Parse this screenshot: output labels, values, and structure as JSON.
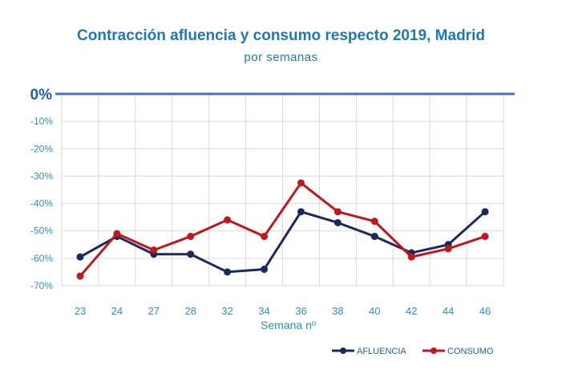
{
  "chart_data": {
    "type": "line",
    "title": "Contracción afluencia y consumo respecto 2019, Madrid",
    "subtitle": "por semanas",
    "xlabel": "Semana nº",
    "ylabel": "",
    "categories": [
      "23",
      "24",
      "27",
      "28",
      "32",
      "34",
      "36",
      "38",
      "40",
      "42",
      "44",
      "46"
    ],
    "y_ticks": [
      "0%",
      "-10%",
      "-20%",
      "-30%",
      "-40%",
      "-50%",
      "-60%",
      "-70%"
    ],
    "ylim": [
      -70,
      0
    ],
    "grid": true,
    "legend_position": "bottom-right",
    "series": [
      {
        "name": "AFLUENCIA",
        "color": "#1b2a5e",
        "values": [
          -59.5,
          -52,
          -58.5,
          -58.5,
          -65,
          -64,
          -43,
          -47,
          -52,
          -58,
          -55,
          -43
        ]
      },
      {
        "name": "CONSUMO",
        "color": "#c0161c",
        "values": [
          -66.5,
          -51,
          -57,
          -52,
          -46,
          -52,
          -32.5,
          -43,
          -46.5,
          -59.5,
          -56.5,
          -52
        ]
      }
    ]
  }
}
